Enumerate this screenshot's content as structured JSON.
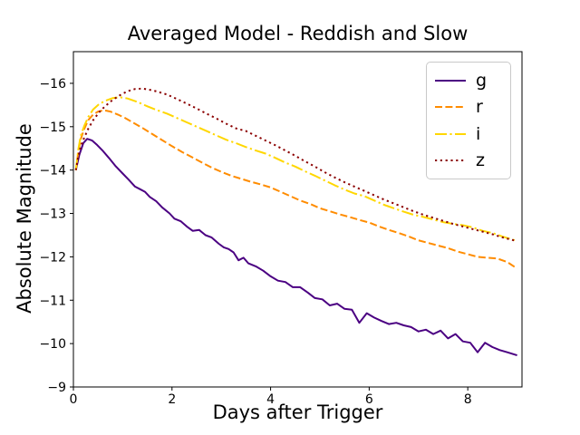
{
  "chart_data": {
    "type": "line",
    "title": "Averaged Model - Reddish and Slow",
    "xlabel": "Days after Trigger",
    "ylabel": "Absolute Magnitude",
    "xlim": [
      0,
      9.1
    ],
    "ylim_bottom": -9,
    "ylim_top": -16.73,
    "y_axis_inverted": true,
    "grid": false,
    "legend_position": "upper right",
    "xticks": {
      "values": [
        0,
        2,
        4,
        6,
        8
      ],
      "labels": [
        "0",
        "2",
        "4",
        "6",
        "8"
      ]
    },
    "yticks": {
      "values": [
        -16,
        -15,
        -14,
        -13,
        -12,
        -11,
        -10,
        -9
      ],
      "labels": [
        "−16",
        "−15",
        "−14",
        "−13",
        "−12",
        "−11",
        "−10",
        "−9"
      ]
    },
    "axis_color": "#000000",
    "series": [
      {
        "name": "g",
        "color": "#4B0082",
        "linestyle": "solid",
        "points": [
          [
            0.05,
            -14.0
          ],
          [
            0.12,
            -14.35
          ],
          [
            0.2,
            -14.62
          ],
          [
            0.28,
            -14.72
          ],
          [
            0.38,
            -14.68
          ],
          [
            0.48,
            -14.58
          ],
          [
            0.6,
            -14.44
          ],
          [
            0.72,
            -14.28
          ],
          [
            0.85,
            -14.1
          ],
          [
            1.0,
            -13.92
          ],
          [
            1.12,
            -13.78
          ],
          [
            1.25,
            -13.62
          ],
          [
            1.35,
            -13.56
          ],
          [
            1.45,
            -13.5
          ],
          [
            1.55,
            -13.38
          ],
          [
            1.68,
            -13.28
          ],
          [
            1.8,
            -13.14
          ],
          [
            1.95,
            -13.0
          ],
          [
            2.05,
            -12.88
          ],
          [
            2.18,
            -12.82
          ],
          [
            2.3,
            -12.7
          ],
          [
            2.42,
            -12.6
          ],
          [
            2.55,
            -12.62
          ],
          [
            2.68,
            -12.5
          ],
          [
            2.8,
            -12.45
          ],
          [
            2.95,
            -12.3
          ],
          [
            3.05,
            -12.22
          ],
          [
            3.15,
            -12.18
          ],
          [
            3.25,
            -12.1
          ],
          [
            3.35,
            -11.92
          ],
          [
            3.45,
            -11.98
          ],
          [
            3.55,
            -11.85
          ],
          [
            3.7,
            -11.78
          ],
          [
            3.85,
            -11.68
          ],
          [
            4.0,
            -11.55
          ],
          [
            4.15,
            -11.45
          ],
          [
            4.3,
            -11.42
          ],
          [
            4.45,
            -11.3
          ],
          [
            4.6,
            -11.3
          ],
          [
            4.75,
            -11.18
          ],
          [
            4.9,
            -11.05
          ],
          [
            5.05,
            -11.02
          ],
          [
            5.2,
            -10.88
          ],
          [
            5.35,
            -10.92
          ],
          [
            5.5,
            -10.8
          ],
          [
            5.65,
            -10.78
          ],
          [
            5.8,
            -10.48
          ],
          [
            5.95,
            -10.7
          ],
          [
            6.1,
            -10.6
          ],
          [
            6.25,
            -10.52
          ],
          [
            6.4,
            -10.45
          ],
          [
            6.55,
            -10.48
          ],
          [
            6.7,
            -10.42
          ],
          [
            6.85,
            -10.38
          ],
          [
            7.0,
            -10.28
          ],
          [
            7.15,
            -10.32
          ],
          [
            7.3,
            -10.22
          ],
          [
            7.45,
            -10.3
          ],
          [
            7.6,
            -10.12
          ],
          [
            7.75,
            -10.22
          ],
          [
            7.9,
            -10.05
          ],
          [
            8.05,
            -10.02
          ],
          [
            8.2,
            -9.8
          ],
          [
            8.35,
            -10.02
          ],
          [
            8.5,
            -9.92
          ],
          [
            8.65,
            -9.85
          ],
          [
            8.8,
            -9.8
          ],
          [
            9.0,
            -9.73
          ]
        ]
      },
      {
        "name": "r",
        "color": "#FF8C00",
        "linestyle": "dashed",
        "points": [
          [
            0.05,
            -14.0
          ],
          [
            0.1,
            -14.42
          ],
          [
            0.15,
            -14.72
          ],
          [
            0.22,
            -14.95
          ],
          [
            0.3,
            -15.15
          ],
          [
            0.4,
            -15.28
          ],
          [
            0.5,
            -15.35
          ],
          [
            0.62,
            -15.38
          ],
          [
            0.75,
            -15.35
          ],
          [
            0.9,
            -15.28
          ],
          [
            1.05,
            -15.2
          ],
          [
            1.2,
            -15.1
          ],
          [
            1.4,
            -14.97
          ],
          [
            1.6,
            -14.83
          ],
          [
            1.8,
            -14.69
          ],
          [
            2.0,
            -14.55
          ],
          [
            2.2,
            -14.42
          ],
          [
            2.4,
            -14.3
          ],
          [
            2.6,
            -14.18
          ],
          [
            2.8,
            -14.06
          ],
          [
            3.0,
            -13.96
          ],
          [
            3.2,
            -13.87
          ],
          [
            3.4,
            -13.8
          ],
          [
            3.6,
            -13.73
          ],
          [
            3.8,
            -13.67
          ],
          [
            4.0,
            -13.6
          ],
          [
            4.2,
            -13.5
          ],
          [
            4.4,
            -13.4
          ],
          [
            4.6,
            -13.3
          ],
          [
            4.8,
            -13.22
          ],
          [
            5.0,
            -13.12
          ],
          [
            5.2,
            -13.05
          ],
          [
            5.4,
            -12.98
          ],
          [
            5.6,
            -12.92
          ],
          [
            5.8,
            -12.85
          ],
          [
            6.0,
            -12.79
          ],
          [
            6.2,
            -12.7
          ],
          [
            6.4,
            -12.62
          ],
          [
            6.6,
            -12.55
          ],
          [
            6.8,
            -12.47
          ],
          [
            7.0,
            -12.38
          ],
          [
            7.2,
            -12.32
          ],
          [
            7.4,
            -12.26
          ],
          [
            7.6,
            -12.2
          ],
          [
            7.8,
            -12.12
          ],
          [
            8.0,
            -12.06
          ],
          [
            8.2,
            -12.0
          ],
          [
            8.4,
            -11.98
          ],
          [
            8.6,
            -11.96
          ],
          [
            8.8,
            -11.88
          ],
          [
            9.0,
            -11.73
          ]
        ]
      },
      {
        "name": "i",
        "color": "#FFD700",
        "linestyle": "dashdot",
        "points": [
          [
            0.05,
            -14.0
          ],
          [
            0.1,
            -14.48
          ],
          [
            0.15,
            -14.8
          ],
          [
            0.22,
            -15.02
          ],
          [
            0.3,
            -15.22
          ],
          [
            0.4,
            -15.4
          ],
          [
            0.52,
            -15.52
          ],
          [
            0.65,
            -15.6
          ],
          [
            0.8,
            -15.66
          ],
          [
            0.95,
            -15.68
          ],
          [
            1.1,
            -15.65
          ],
          [
            1.3,
            -15.57
          ],
          [
            1.5,
            -15.47
          ],
          [
            1.7,
            -15.38
          ],
          [
            1.9,
            -15.3
          ],
          [
            2.1,
            -15.2
          ],
          [
            2.3,
            -15.1
          ],
          [
            2.5,
            -15.0
          ],
          [
            2.7,
            -14.9
          ],
          [
            2.9,
            -14.8
          ],
          [
            3.1,
            -14.7
          ],
          [
            3.3,
            -14.62
          ],
          [
            3.5,
            -14.53
          ],
          [
            3.7,
            -14.45
          ],
          [
            3.9,
            -14.38
          ],
          [
            4.1,
            -14.28
          ],
          [
            4.3,
            -14.17
          ],
          [
            4.5,
            -14.08
          ],
          [
            4.7,
            -13.97
          ],
          [
            4.9,
            -13.87
          ],
          [
            5.1,
            -13.76
          ],
          [
            5.3,
            -13.65
          ],
          [
            5.5,
            -13.55
          ],
          [
            5.7,
            -13.46
          ],
          [
            5.9,
            -13.4
          ],
          [
            6.1,
            -13.3
          ],
          [
            6.3,
            -13.2
          ],
          [
            6.5,
            -13.12
          ],
          [
            6.7,
            -13.04
          ],
          [
            6.9,
            -12.97
          ],
          [
            7.1,
            -12.92
          ],
          [
            7.3,
            -12.86
          ],
          [
            7.5,
            -12.8
          ],
          [
            7.7,
            -12.76
          ],
          [
            7.9,
            -12.73
          ],
          [
            8.1,
            -12.68
          ],
          [
            8.3,
            -12.6
          ],
          [
            8.5,
            -12.55
          ],
          [
            8.7,
            -12.47
          ],
          [
            8.9,
            -12.4
          ],
          [
            9.0,
            -12.37
          ]
        ]
      },
      {
        "name": "z",
        "color": "#8B0000",
        "linestyle": "dotted",
        "points": [
          [
            0.05,
            -14.0
          ],
          [
            0.1,
            -14.32
          ],
          [
            0.15,
            -14.55
          ],
          [
            0.22,
            -14.75
          ],
          [
            0.3,
            -14.95
          ],
          [
            0.4,
            -15.15
          ],
          [
            0.52,
            -15.33
          ],
          [
            0.65,
            -15.48
          ],
          [
            0.8,
            -15.62
          ],
          [
            0.95,
            -15.73
          ],
          [
            1.1,
            -15.82
          ],
          [
            1.25,
            -15.87
          ],
          [
            1.4,
            -15.88
          ],
          [
            1.55,
            -15.85
          ],
          [
            1.7,
            -15.81
          ],
          [
            1.9,
            -15.74
          ],
          [
            2.1,
            -15.64
          ],
          [
            2.3,
            -15.53
          ],
          [
            2.5,
            -15.42
          ],
          [
            2.7,
            -15.3
          ],
          [
            2.9,
            -15.19
          ],
          [
            3.1,
            -15.07
          ],
          [
            3.3,
            -14.96
          ],
          [
            3.5,
            -14.9
          ],
          [
            3.7,
            -14.79
          ],
          [
            3.9,
            -14.68
          ],
          [
            4.1,
            -14.57
          ],
          [
            4.3,
            -14.45
          ],
          [
            4.5,
            -14.33
          ],
          [
            4.7,
            -14.2
          ],
          [
            4.9,
            -14.08
          ],
          [
            5.1,
            -13.95
          ],
          [
            5.3,
            -13.83
          ],
          [
            5.5,
            -13.72
          ],
          [
            5.7,
            -13.62
          ],
          [
            5.9,
            -13.52
          ],
          [
            6.1,
            -13.42
          ],
          [
            6.3,
            -13.32
          ],
          [
            6.5,
            -13.23
          ],
          [
            6.7,
            -13.14
          ],
          [
            6.9,
            -13.05
          ],
          [
            7.1,
            -12.97
          ],
          [
            7.3,
            -12.9
          ],
          [
            7.5,
            -12.83
          ],
          [
            7.7,
            -12.76
          ],
          [
            7.9,
            -12.7
          ],
          [
            8.1,
            -12.64
          ],
          [
            8.3,
            -12.58
          ],
          [
            8.5,
            -12.52
          ],
          [
            8.7,
            -12.45
          ],
          [
            8.9,
            -12.39
          ],
          [
            9.0,
            -12.36
          ]
        ]
      }
    ]
  }
}
